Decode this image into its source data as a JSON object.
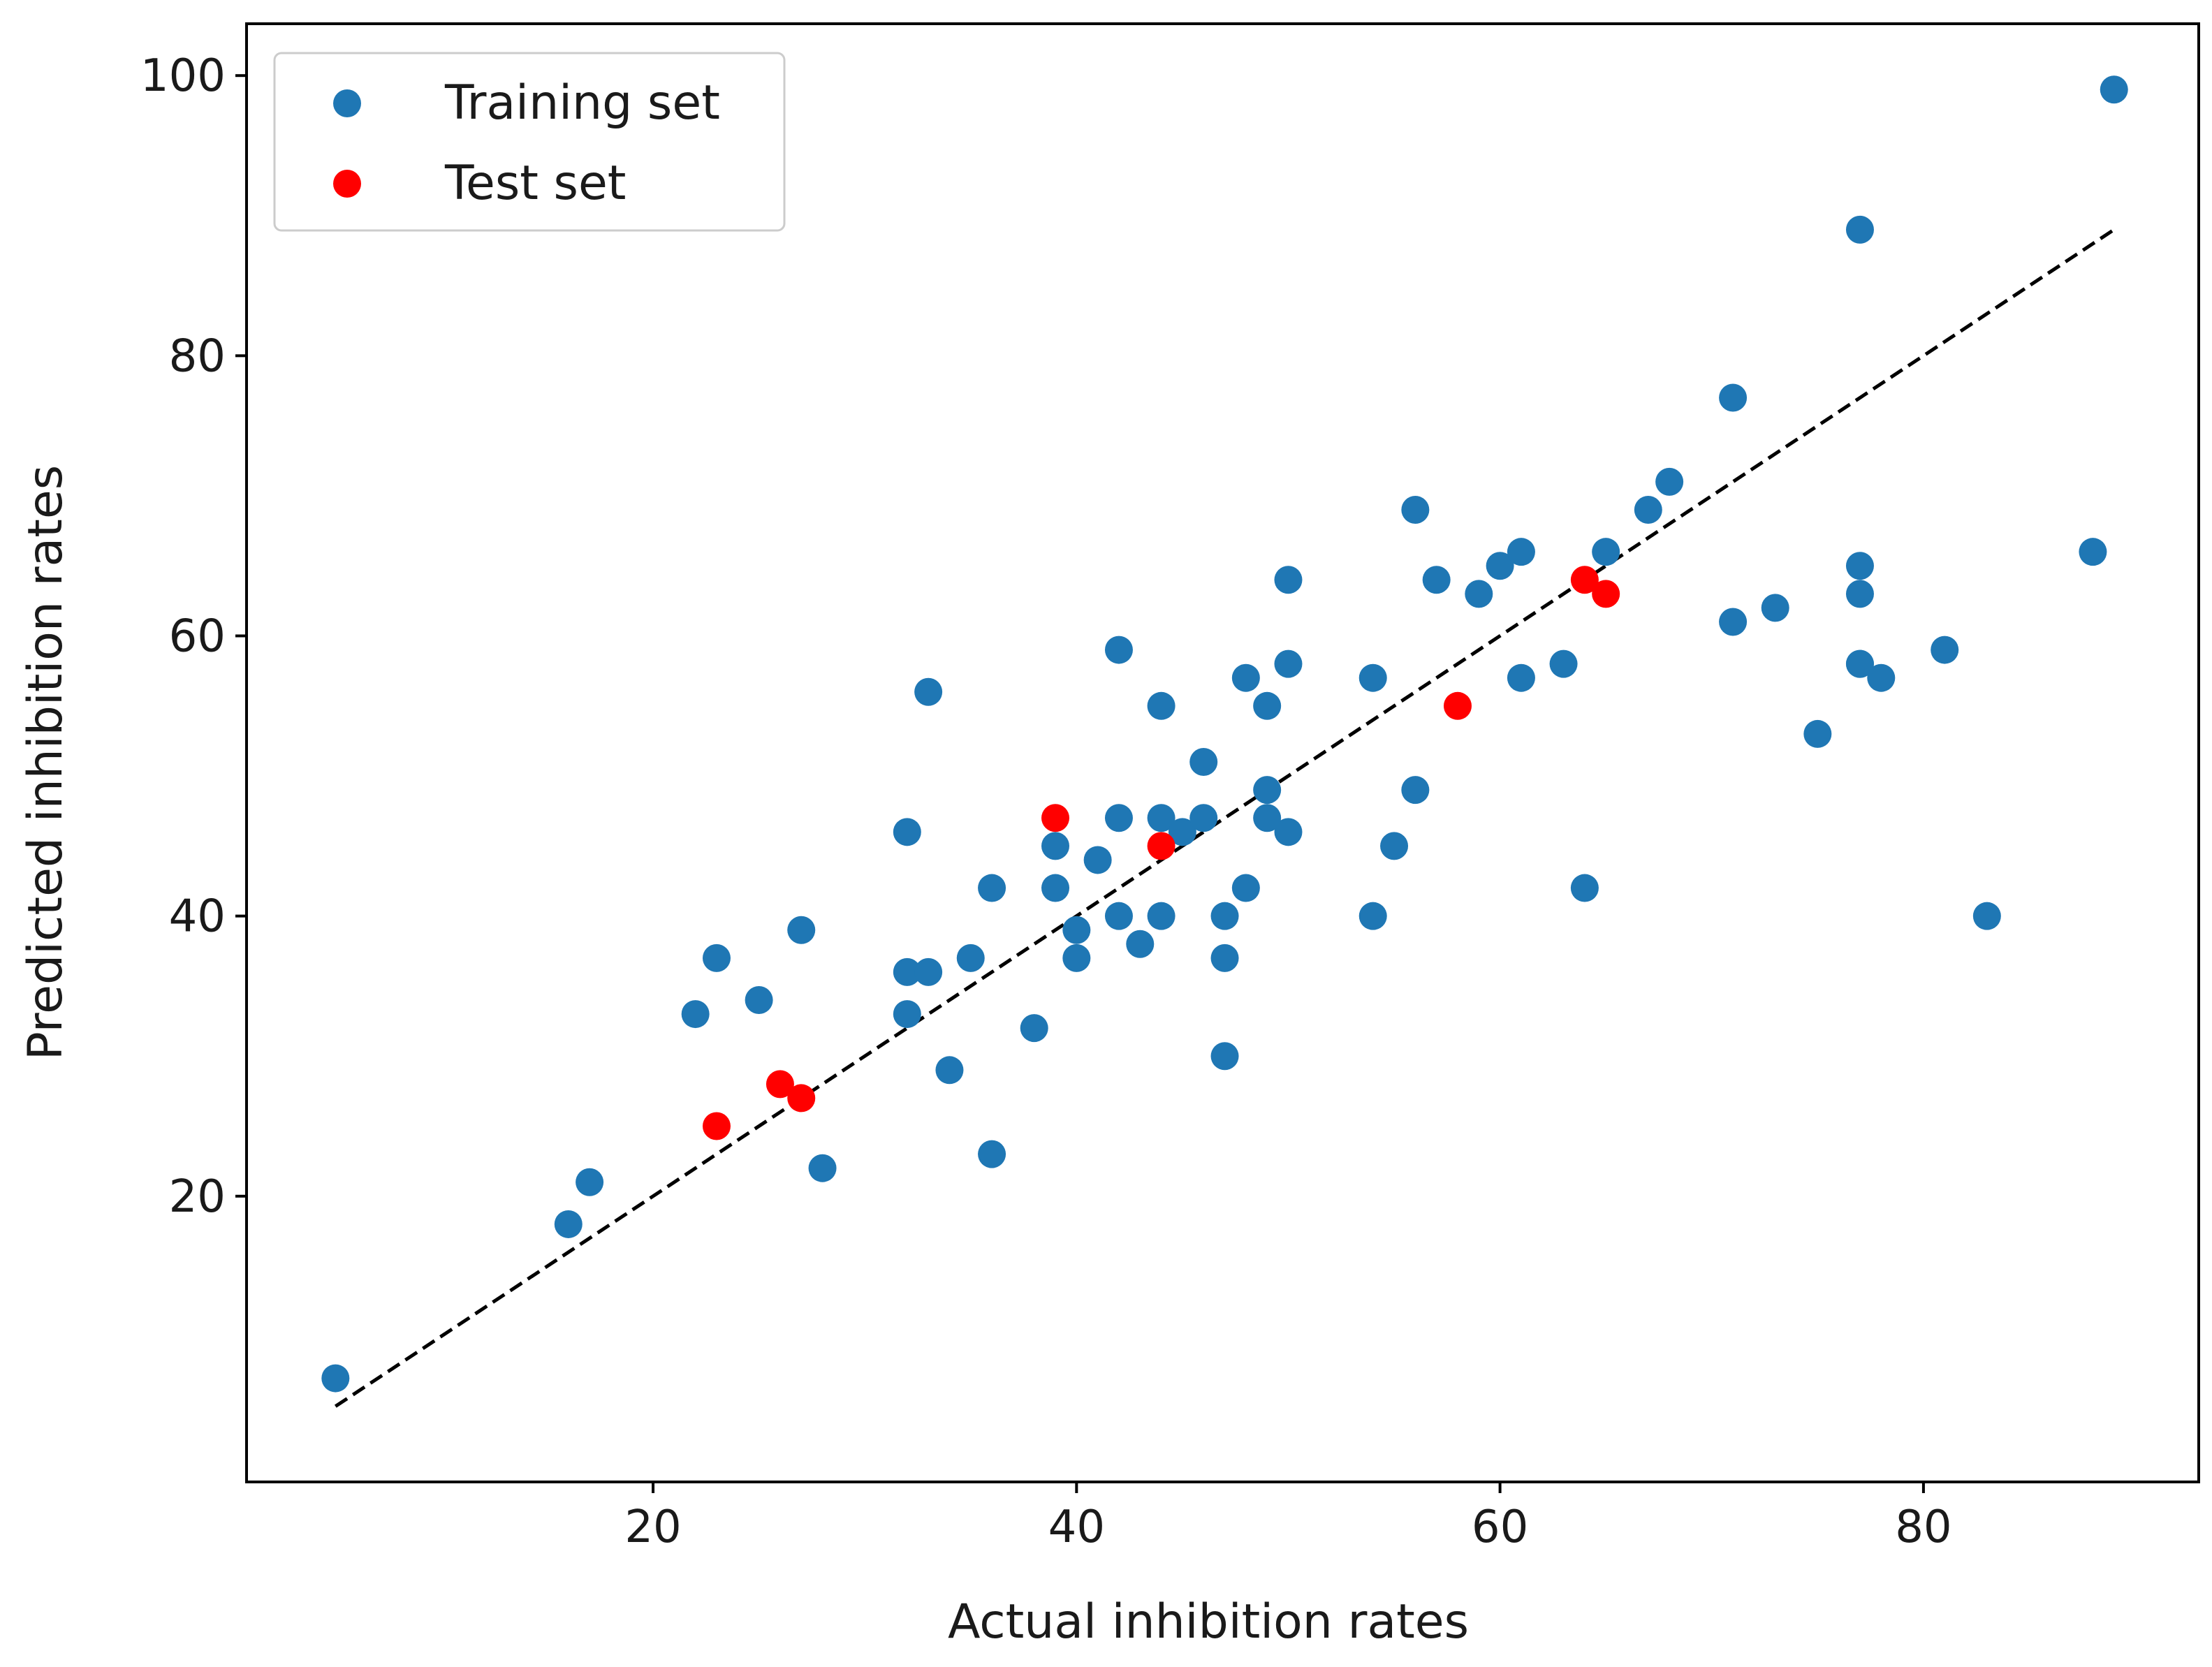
{
  "chart_data": {
    "type": "scatter",
    "title": "",
    "xlabel": "Actual inhibition rates",
    "ylabel": "Predicted inhibition rates",
    "xlim": [
      0.8,
      93.0
    ],
    "ylim": [
      -0.4,
      103.7
    ],
    "xticks": [
      20,
      40,
      60,
      80
    ],
    "yticks": [
      20,
      40,
      60,
      80,
      100
    ],
    "grid": false,
    "legend_position": "upper left",
    "series": [
      {
        "name": "Training set",
        "color": "#1f77b4",
        "x": [
          5,
          16,
          17,
          22,
          23,
          25,
          27,
          28,
          32,
          32,
          32,
          33,
          33,
          34,
          35,
          36,
          36,
          38,
          39,
          39,
          40,
          40,
          41,
          42,
          42,
          42,
          43,
          44,
          44,
          44,
          45,
          46,
          46,
          47,
          47,
          47,
          48,
          48,
          49,
          49,
          49,
          50,
          50,
          50,
          54,
          54,
          55,
          56,
          56,
          57,
          59,
          60,
          61,
          61,
          63,
          64,
          65,
          67,
          68,
          71,
          71,
          73,
          75,
          77,
          77,
          77,
          77,
          77,
          78,
          81,
          83,
          88,
          89
        ],
        "y": [
          7,
          18,
          21,
          33,
          37,
          34,
          39,
          22,
          46,
          36,
          33,
          56,
          36,
          29,
          37,
          42,
          23,
          32,
          45,
          42,
          39,
          37,
          44,
          59,
          47,
          40,
          38,
          55,
          47,
          40,
          46,
          51,
          47,
          40,
          37,
          30,
          57,
          42,
          55,
          49,
          47,
          64,
          58,
          46,
          57,
          40,
          45,
          69,
          49,
          64,
          63,
          65,
          66,
          57,
          58,
          42,
          66,
          69,
          71,
          77,
          61,
          62,
          53,
          89,
          65,
          63,
          58,
          58,
          57,
          59,
          40,
          66,
          99
        ]
      },
      {
        "name": "Test set",
        "color": "#ff0000",
        "x": [
          23,
          26,
          27,
          39,
          44,
          58,
          64,
          65
        ],
        "y": [
          25,
          28,
          27,
          47,
          45,
          55,
          64,
          63
        ]
      }
    ],
    "reference_line": {
      "style": "dashed",
      "color": "#000000",
      "x": [
        5,
        89
      ],
      "y": [
        5,
        89
      ]
    }
  }
}
